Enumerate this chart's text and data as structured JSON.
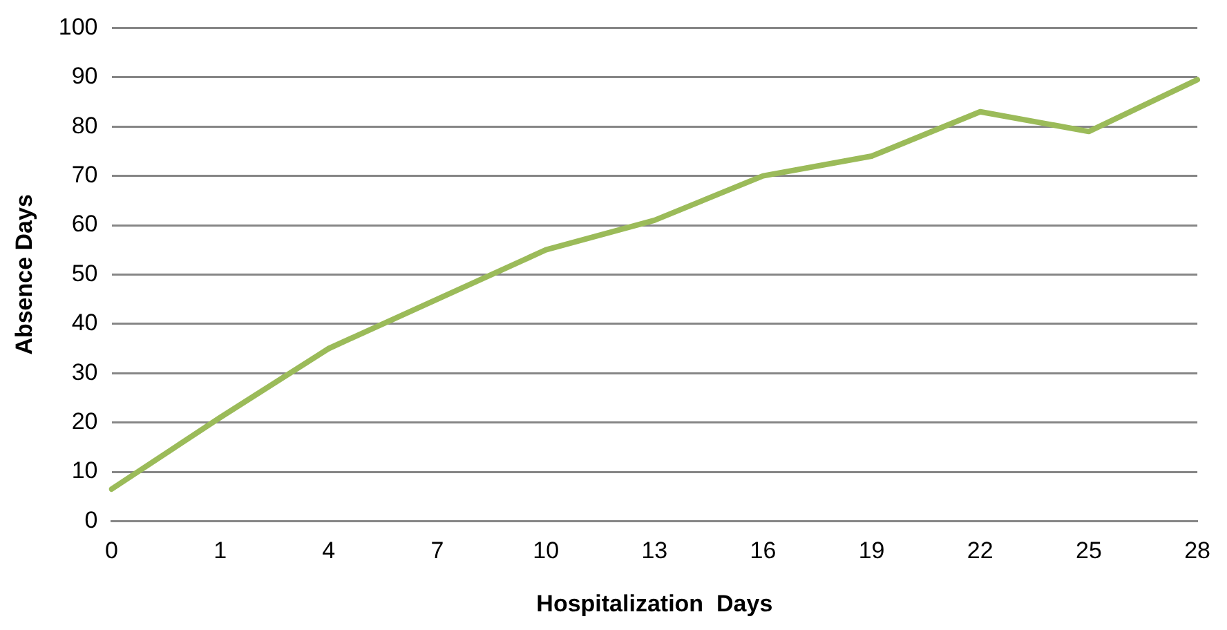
{
  "chart_data": {
    "type": "line",
    "xlabel": "Hospitalization  Days",
    "ylabel": "Absence Days",
    "categories": [
      "0",
      "1",
      "4",
      "7",
      "10",
      "13",
      "16",
      "19",
      "22",
      "25",
      "28"
    ],
    "series": [
      {
        "color": "#9bbb59",
        "values": [
          6.5,
          21,
          35,
          45,
          55,
          61,
          70,
          74,
          83,
          79,
          89.5
        ]
      }
    ],
    "ylim": [
      0,
      100
    ],
    "yticks": [
      0,
      10,
      20,
      30,
      40,
      50,
      60,
      70,
      80,
      90,
      100
    ],
    "grid": "y",
    "legend": false,
    "marker": "none",
    "line_style": "solid"
  }
}
